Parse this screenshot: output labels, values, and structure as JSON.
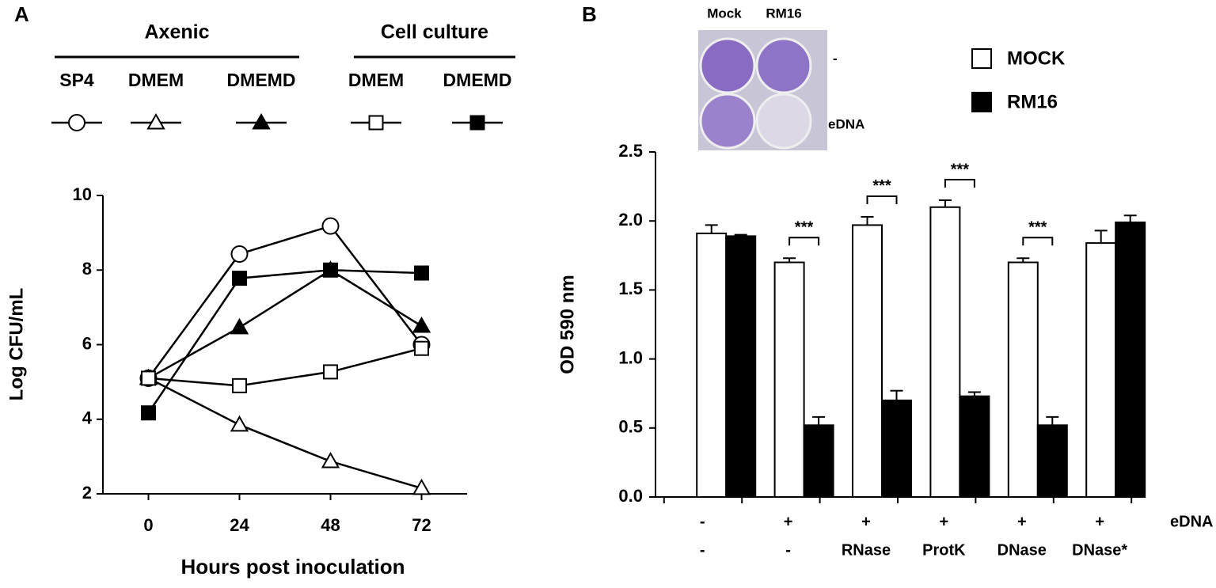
{
  "chart_data": [
    {
      "type": "line",
      "panel": "A",
      "groups": [
        {
          "name": "Axenic",
          "series": [
            0,
            1,
            2
          ]
        },
        {
          "name": "Cell culture",
          "series": [
            3,
            4
          ]
        }
      ],
      "x": [
        0,
        24,
        48,
        72
      ],
      "series": [
        {
          "name": "SP4",
          "marker": "circle",
          "fill": "#ffffff",
          "color": "#000000",
          "values": [
            5.1,
            8.43,
            9.18,
            6.0
          ]
        },
        {
          "name": "DMEM",
          "marker": "triangle",
          "fill": "#ffffff",
          "color": "#000000",
          "values": [
            5.1,
            3.85,
            2.87,
            2.15
          ]
        },
        {
          "name": "DMEMD",
          "marker": "triangle",
          "fill": "#000000",
          "color": "#000000",
          "values": [
            5.1,
            6.46,
            8.0,
            6.5
          ]
        },
        {
          "name": "DMEM",
          "marker": "square",
          "fill": "#ffffff",
          "color": "#000000",
          "values": [
            5.1,
            4.9,
            5.27,
            5.9
          ]
        },
        {
          "name": "DMEMD",
          "marker": "square",
          "fill": "#000000",
          "color": "#000000",
          "values": [
            4.17,
            7.78,
            8.0,
            7.92
          ]
        }
      ],
      "xlim": [
        -12,
        84
      ],
      "xticks": [
        0,
        24,
        48,
        72
      ],
      "ylim": [
        2,
        10
      ],
      "yticks": [
        2,
        4,
        6,
        8,
        10
      ],
      "x_label": "Hours post inoculation",
      "y_label": "Log CFU/mL"
    },
    {
      "type": "bar",
      "panel": "B",
      "category_rows": [
        {
          "name": "eDNA",
          "labels": [
            "-",
            "+",
            "+",
            "+",
            "+",
            "+"
          ]
        },
        {
          "labels": [
            "-",
            "-",
            "RNase",
            "ProtK",
            "DNase",
            "DNase*"
          ]
        }
      ],
      "series": [
        {
          "name": "MOCK",
          "color": "#ffffff",
          "values": [
            1.91,
            1.7,
            1.97,
            2.1,
            1.7,
            1.84
          ],
          "errors": [
            0.06,
            0.03,
            0.06,
            0.05,
            0.03,
            0.09
          ]
        },
        {
          "name": "RM16",
          "color": "#000000",
          "values": [
            1.89,
            0.52,
            0.7,
            0.73,
            0.52,
            1.99
          ],
          "errors": [
            0.01,
            0.06,
            0.07,
            0.03,
            0.06,
            0.05
          ]
        }
      ],
      "annotations": [
        {
          "text": "***",
          "category": 1
        },
        {
          "text": "***",
          "category": 2
        },
        {
          "text": "***",
          "category": 3
        },
        {
          "text": "***",
          "category": 4
        }
      ],
      "ylim": [
        0,
        2.5
      ],
      "yticks": [
        {
          "value": 0,
          "label": "0.0"
        },
        0.5,
        {
          "value": 1,
          "label": "1.0"
        },
        1.5,
        {
          "value": 2,
          "label": "2.0"
        },
        2.5
      ],
      "y_label": "OD 590 nm",
      "inset": {
        "columns": [
          "Mock",
          "RM16"
        ],
        "rows": [
          "-",
          "eDNA"
        ]
      }
    }
  ]
}
